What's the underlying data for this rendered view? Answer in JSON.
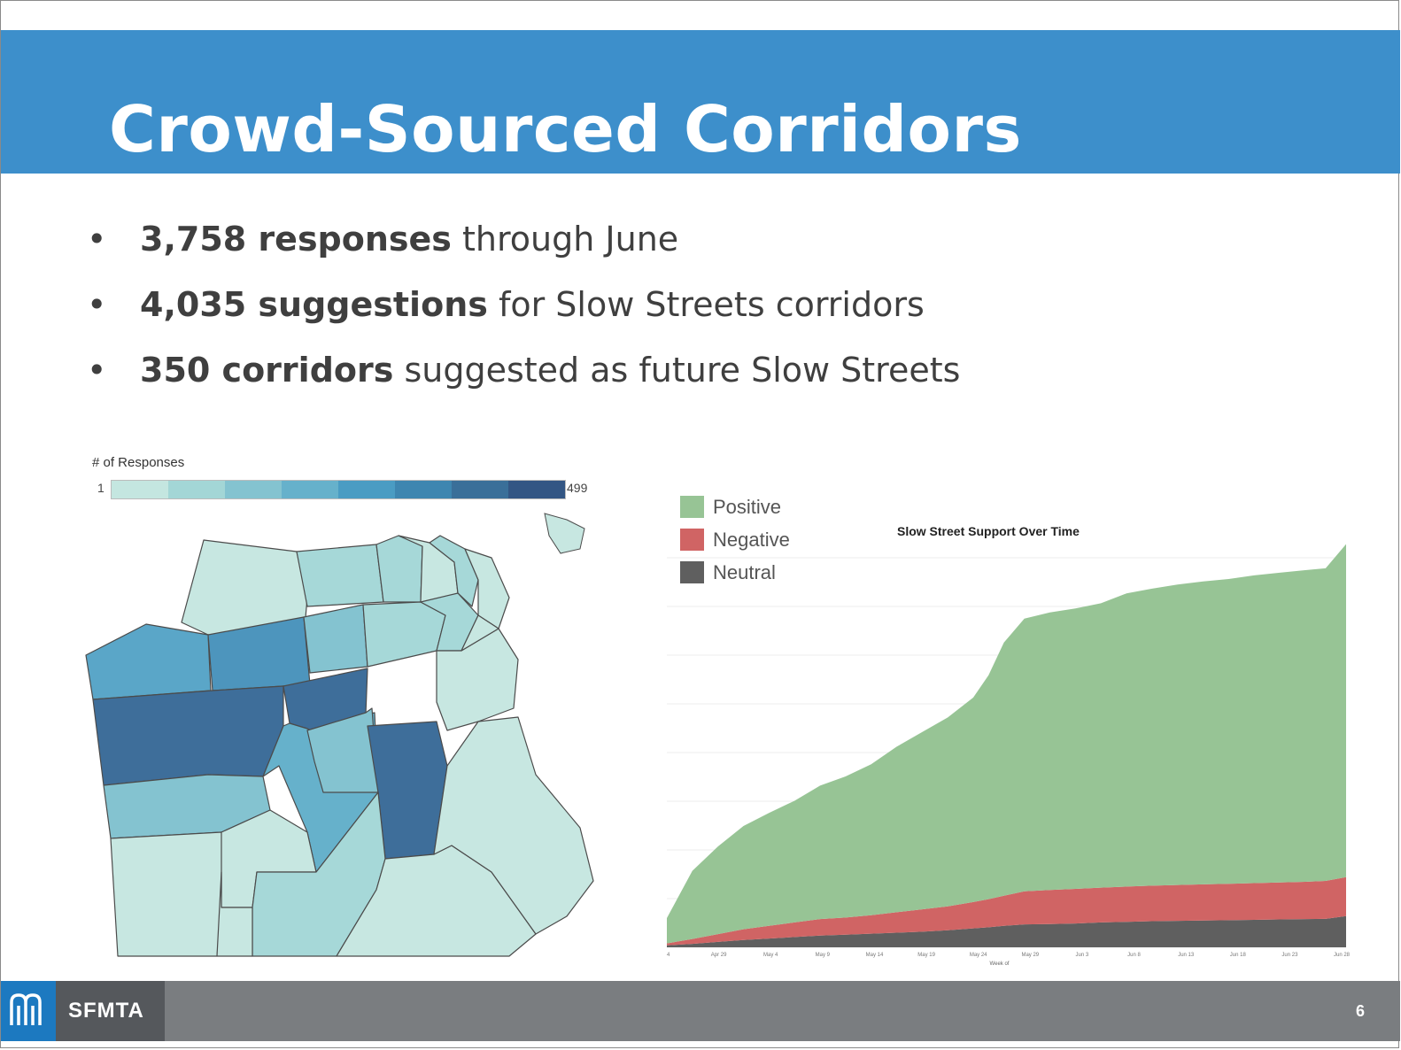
{
  "slide": {
    "title": "Crowd-Sourced Corridors",
    "bullets": [
      {
        "bold": "3,758 responses",
        "rest": " through June"
      },
      {
        "bold": "4,035 suggestions",
        "rest": " for Slow Streets corridors"
      },
      {
        "bold": "350 corridors",
        "rest": " suggested as future Slow Streets"
      }
    ],
    "bullet_symbol": "•"
  },
  "map": {
    "legend_title": "# of Responses",
    "scale_min": "1",
    "scale_max": "499",
    "scale_colors": [
      "#c4e6e0",
      "#a3d6d6",
      "#84c3d0",
      "#66b1cb",
      "#4a9cc3",
      "#3e86b0",
      "#3a6f99",
      "#335684"
    ]
  },
  "chart_data": {
    "type": "area",
    "title": "Slow Street Support Over Time",
    "xlabel": "Week of",
    "x_ticks": [
      "4",
      "Apr 29",
      "May 4",
      "May 9",
      "May 14",
      "May 19",
      "May 24",
      "May 29",
      "Jun 3",
      "Jun 8",
      "Jun 13",
      "Jun 18",
      "Jun 23",
      "Jun 28"
    ],
    "stacked": true,
    "ylim": [
      0,
      4000
    ],
    "x": [
      0,
      0.5,
      1,
      1.5,
      2,
      2.5,
      3,
      3.5,
      4,
      4.5,
      5,
      5.5,
      6,
      6.3,
      6.6,
      7,
      7.5,
      8,
      8.5,
      9,
      9.5,
      10,
      10.5,
      11,
      11.5,
      12,
      12.5,
      12.9,
      13.3
    ],
    "series": [
      {
        "name": "Neutral",
        "color": "#5f5f5f",
        "values": [
          20,
          35,
          55,
          75,
          90,
          105,
          120,
          130,
          140,
          150,
          160,
          175,
          195,
          205,
          220,
          235,
          238,
          245,
          255,
          262,
          268,
          272,
          275,
          278,
          282,
          286,
          290,
          292,
          320
        ]
      },
      {
        "name": "Negative",
        "color": "#d06464",
        "values": [
          20,
          50,
          80,
          110,
          130,
          150,
          170,
          175,
          190,
          210,
          230,
          245,
          270,
          290,
          310,
          340,
          350,
          355,
          358,
          362,
          365,
          368,
          371,
          374,
          377,
          380,
          383,
          390,
          400
        ]
      },
      {
        "name": "Positive",
        "color": "#97c495",
        "values": [
          260,
          700,
          900,
          1060,
          1160,
          1250,
          1370,
          1450,
          1550,
          1700,
          1820,
          1940,
          2100,
          2300,
          2600,
          2800,
          2850,
          2880,
          2920,
          3010,
          3050,
          3085,
          3110,
          3130,
          3160,
          3180,
          3200,
          3210,
          3420
        ]
      }
    ]
  },
  "footer": {
    "logo_text": "SFMTA",
    "page_number": "6"
  }
}
